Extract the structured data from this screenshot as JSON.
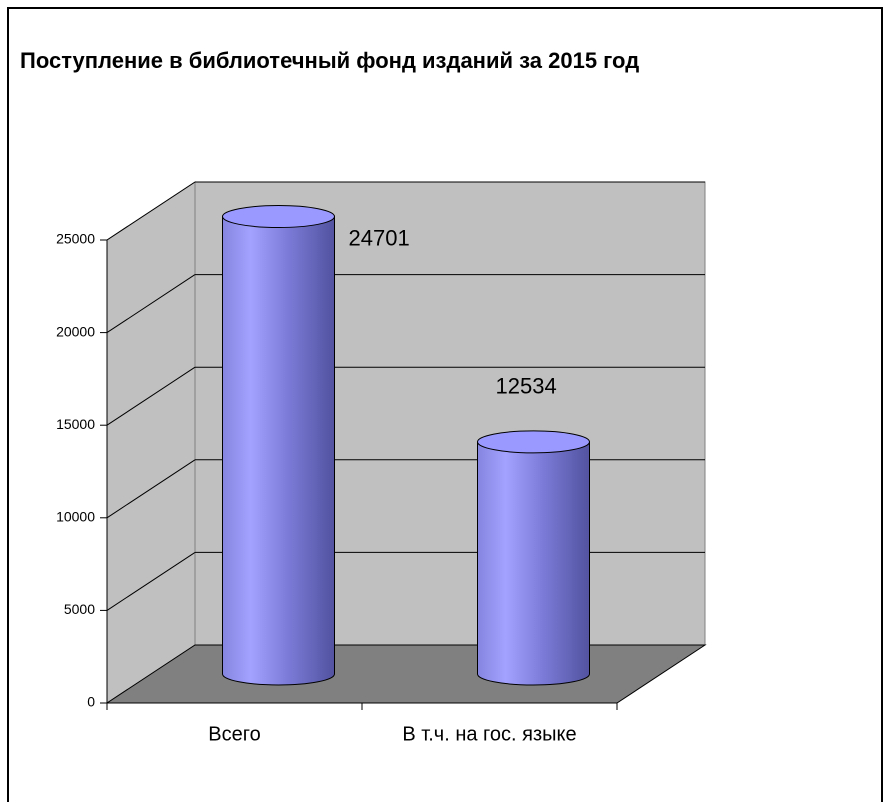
{
  "chart_data": {
    "type": "bar",
    "title": "Поступление в библиотечный фонд изданий за 2015 год",
    "categories": [
      "Всего",
      "В т.ч. на гос. языке"
    ],
    "values": [
      24701,
      12534
    ],
    "color": "#9999ff",
    "ylim": [
      0,
      25000
    ],
    "yticks": [
      0,
      5000,
      10000,
      15000,
      20000,
      25000
    ],
    "grid": true
  }
}
